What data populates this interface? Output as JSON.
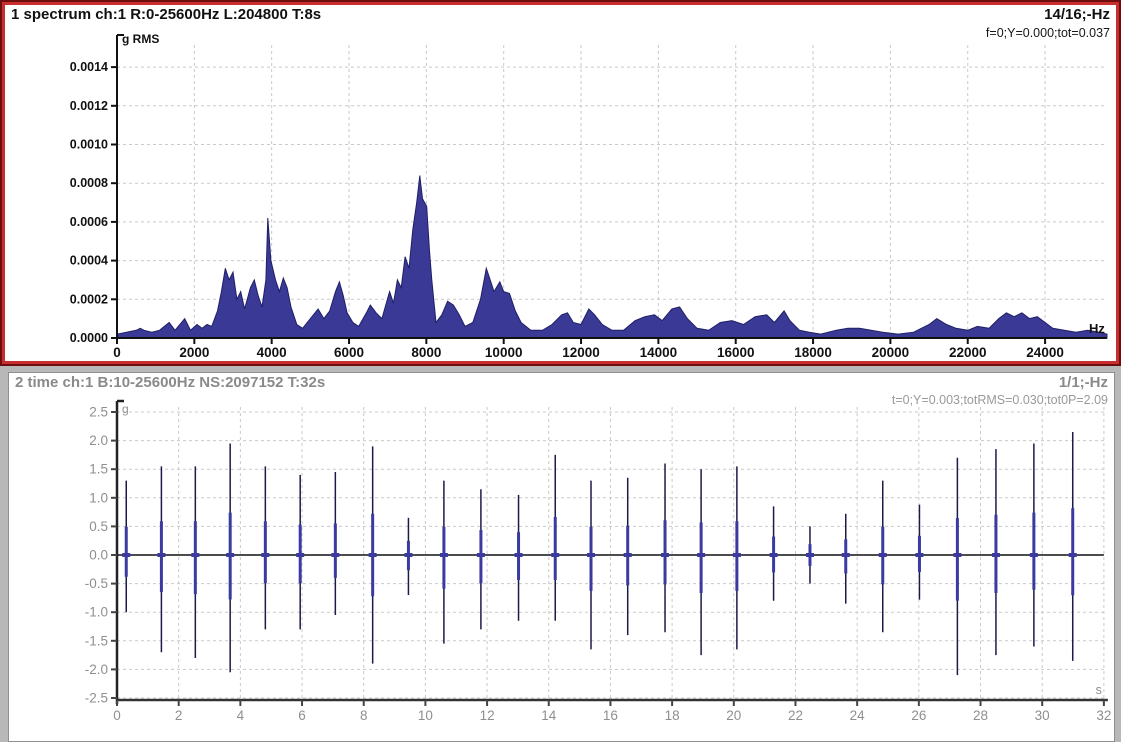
{
  "pane1": {
    "title": "1 spectrum ch:1 R:0-25600Hz L:204800 T:8s",
    "page_label": "14/16;-Hz",
    "stats": "f=0;Y=0.000;tot=0.037",
    "y_unit": "g RMS",
    "x_unit": "Hz"
  },
  "pane2": {
    "title": "2 time ch:1 B:10-25600Hz NS:2097152 T:32s",
    "page_label": "1/1;-Hz",
    "stats": "t=0;Y=0.003;totRMS=0.030;tot0P=2.09",
    "y_unit": "g",
    "x_unit": "s"
  },
  "colors": {
    "spectrum_fill": "#3a3a96",
    "spectrum_stroke": "#1f1f66",
    "spike_dark": "#1b1b4a",
    "spike_navy": "#3a3aa0",
    "axis_black": "#111111",
    "grid": "#c9c9c9",
    "inactive_gray": "#8f8f8f",
    "pane_border_red": "#c82e2e",
    "pane_border_dark_red": "#6e0d0d"
  },
  "chart_data": [
    {
      "type": "area",
      "title": "1 spectrum ch:1 R:0-25600Hz L:204800 T:8s",
      "xlabel": "Hz",
      "ylabel": "g RMS",
      "xlim": [
        0,
        25600
      ],
      "ylim": [
        0,
        0.0015
      ],
      "xticks": [
        0,
        2000,
        4000,
        6000,
        8000,
        10000,
        12000,
        14000,
        16000,
        18000,
        20000,
        22000,
        24000
      ],
      "yticks": [
        0.0,
        0.0002,
        0.0004,
        0.0006,
        0.0008,
        0.001,
        0.0012,
        0.0014
      ],
      "grid": true,
      "points": [
        [
          0,
          2e-05
        ],
        [
          250,
          3e-05
        ],
        [
          500,
          4e-05
        ],
        [
          600,
          5e-05
        ],
        [
          700,
          4e-05
        ],
        [
          900,
          3e-05
        ],
        [
          1100,
          4e-05
        ],
        [
          1350,
          8e-05
        ],
        [
          1500,
          4e-05
        ],
        [
          1750,
          0.0001
        ],
        [
          1900,
          4e-05
        ],
        [
          2070,
          7e-05
        ],
        [
          2200,
          5e-05
        ],
        [
          2330,
          7e-05
        ],
        [
          2450,
          6e-05
        ],
        [
          2600,
          0.00014
        ],
        [
          2700,
          0.00024
        ],
        [
          2800,
          0.00036
        ],
        [
          2900,
          0.0003
        ],
        [
          3000,
          0.00034
        ],
        [
          3100,
          0.0002
        ],
        [
          3200,
          0.00024
        ],
        [
          3300,
          0.00015
        ],
        [
          3450,
          0.00026
        ],
        [
          3550,
          0.0003
        ],
        [
          3650,
          0.00022
        ],
        [
          3750,
          0.00016
        ],
        [
          3850,
          0.0003
        ],
        [
          3900,
          0.00062
        ],
        [
          3980,
          0.0004
        ],
        [
          4100,
          0.0003
        ],
        [
          4200,
          0.00024
        ],
        [
          4300,
          0.00031
        ],
        [
          4400,
          0.00026
        ],
        [
          4500,
          0.00016
        ],
        [
          4650,
          7e-05
        ],
        [
          4800,
          5e-05
        ],
        [
          5000,
          0.0001
        ],
        [
          5200,
          0.00015
        ],
        [
          5350,
          0.0001
        ],
        [
          5500,
          0.00014
        ],
        [
          5650,
          0.00024
        ],
        [
          5750,
          0.00029
        ],
        [
          5850,
          0.00022
        ],
        [
          5950,
          0.00013
        ],
        [
          6100,
          8e-05
        ],
        [
          6250,
          6e-05
        ],
        [
          6450,
          0.00013
        ],
        [
          6550,
          0.00017
        ],
        [
          6700,
          0.00013
        ],
        [
          6850,
          0.0001
        ],
        [
          7050,
          0.00024
        ],
        [
          7150,
          0.00018
        ],
        [
          7250,
          0.0003
        ],
        [
          7350,
          0.00026
        ],
        [
          7450,
          0.00042
        ],
        [
          7550,
          0.00036
        ],
        [
          7650,
          0.00056
        ],
        [
          7750,
          0.0007
        ],
        [
          7830,
          0.00084
        ],
        [
          7900,
          0.00072
        ],
        [
          8010,
          0.00068
        ],
        [
          8080,
          0.00045
        ],
        [
          8140,
          0.0003
        ],
        [
          8250,
          8e-05
        ],
        [
          8400,
          0.00012
        ],
        [
          8550,
          0.00019
        ],
        [
          8700,
          0.00017
        ],
        [
          8850,
          0.00012
        ],
        [
          9000,
          6e-05
        ],
        [
          9200,
          8e-05
        ],
        [
          9400,
          0.0002
        ],
        [
          9550,
          0.00036
        ],
        [
          9650,
          0.0003
        ],
        [
          9750,
          0.00024
        ],
        [
          9900,
          0.00029
        ],
        [
          10000,
          0.00024
        ],
        [
          10150,
          0.00023
        ],
        [
          10300,
          0.00014
        ],
        [
          10450,
          8e-05
        ],
        [
          10700,
          4e-05
        ],
        [
          11000,
          4e-05
        ],
        [
          11250,
          7e-05
        ],
        [
          11500,
          0.00012
        ],
        [
          11650,
          0.00013
        ],
        [
          11800,
          8e-05
        ],
        [
          12000,
          7e-05
        ],
        [
          12200,
          0.00015
        ],
        [
          12350,
          0.00012
        ],
        [
          12550,
          7e-05
        ],
        [
          12800,
          4e-05
        ],
        [
          13100,
          4e-05
        ],
        [
          13400,
          9e-05
        ],
        [
          13650,
          0.00011
        ],
        [
          13900,
          0.00012
        ],
        [
          14100,
          9e-05
        ],
        [
          14350,
          0.00015
        ],
        [
          14550,
          0.00016
        ],
        [
          14750,
          0.0001
        ],
        [
          15000,
          5e-05
        ],
        [
          15300,
          4e-05
        ],
        [
          15600,
          8e-05
        ],
        [
          15900,
          9e-05
        ],
        [
          16200,
          7e-05
        ],
        [
          16500,
          0.00011
        ],
        [
          16800,
          0.00012
        ],
        [
          17000,
          8e-05
        ],
        [
          17250,
          0.00014
        ],
        [
          17400,
          9e-05
        ],
        [
          17650,
          4e-05
        ],
        [
          17900,
          3e-05
        ],
        [
          18200,
          2e-05
        ],
        [
          18600,
          4e-05
        ],
        [
          18900,
          5e-05
        ],
        [
          19200,
          5e-05
        ],
        [
          19500,
          4e-05
        ],
        [
          19800,
          3e-05
        ],
        [
          20200,
          2e-05
        ],
        [
          20600,
          3e-05
        ],
        [
          21000,
          7e-05
        ],
        [
          21200,
          0.0001
        ],
        [
          21450,
          7e-05
        ],
        [
          21700,
          5e-05
        ],
        [
          22000,
          4e-05
        ],
        [
          22250,
          6e-05
        ],
        [
          22550,
          5e-05
        ],
        [
          22800,
          0.0001
        ],
        [
          23000,
          0.00013
        ],
        [
          23200,
          0.00011
        ],
        [
          23400,
          0.00013
        ],
        [
          23600,
          0.0001
        ],
        [
          23800,
          0.00011
        ],
        [
          24000,
          8e-05
        ],
        [
          24200,
          5e-05
        ],
        [
          24500,
          4e-05
        ],
        [
          24800,
          3e-05
        ],
        [
          25100,
          4e-05
        ],
        [
          25400,
          3e-05
        ],
        [
          25600,
          2e-05
        ]
      ]
    },
    {
      "type": "line",
      "subtype": "impulse-train",
      "title": "2 time ch:1 B:10-25600Hz NS:2097152 T:32s",
      "xlabel": "s",
      "ylabel": "g",
      "xlim": [
        0,
        32
      ],
      "ylim": [
        -2.5,
        2.5
      ],
      "xticks": [
        0,
        2,
        4,
        6,
        8,
        10,
        12,
        14,
        16,
        18,
        20,
        22,
        24,
        26,
        28,
        30,
        32
      ],
      "yticks": [
        -2.5,
        -2.0,
        -1.5,
        -1.0,
        -0.5,
        0.0,
        0.5,
        1.0,
        1.5,
        2.0,
        2.5
      ],
      "grid": true,
      "spikes_format": "[time_s, peak_up_g, peak_down_g]",
      "spikes": [
        [
          0.3,
          1.3,
          -1.0
        ],
        [
          1.44,
          1.55,
          -1.7
        ],
        [
          2.54,
          1.55,
          -1.8
        ],
        [
          3.67,
          1.95,
          -2.05
        ],
        [
          4.81,
          1.55,
          -1.3
        ],
        [
          5.94,
          1.4,
          -1.3
        ],
        [
          7.08,
          1.45,
          -1.05
        ],
        [
          8.29,
          1.9,
          -1.9
        ],
        [
          9.45,
          0.65,
          -0.7
        ],
        [
          10.6,
          1.3,
          -1.55
        ],
        [
          11.8,
          1.15,
          -1.3
        ],
        [
          13.02,
          1.05,
          -1.15
        ],
        [
          14.21,
          1.75,
          -1.15
        ],
        [
          15.37,
          1.3,
          -1.65
        ],
        [
          16.56,
          1.35,
          -1.4
        ],
        [
          17.77,
          1.6,
          -1.35
        ],
        [
          18.94,
          1.5,
          -1.75
        ],
        [
          20.1,
          1.55,
          -1.65
        ],
        [
          21.29,
          0.85,
          -0.8
        ],
        [
          22.47,
          0.5,
          -0.5
        ],
        [
          23.63,
          0.72,
          -0.85
        ],
        [
          24.83,
          1.3,
          -1.35
        ],
        [
          26.02,
          0.88,
          -0.78
        ],
        [
          27.25,
          1.7,
          -2.1
        ],
        [
          28.5,
          1.85,
          -1.75
        ],
        [
          29.73,
          1.95,
          -1.6
        ],
        [
          30.99,
          2.15,
          -1.85
        ]
      ]
    }
  ]
}
